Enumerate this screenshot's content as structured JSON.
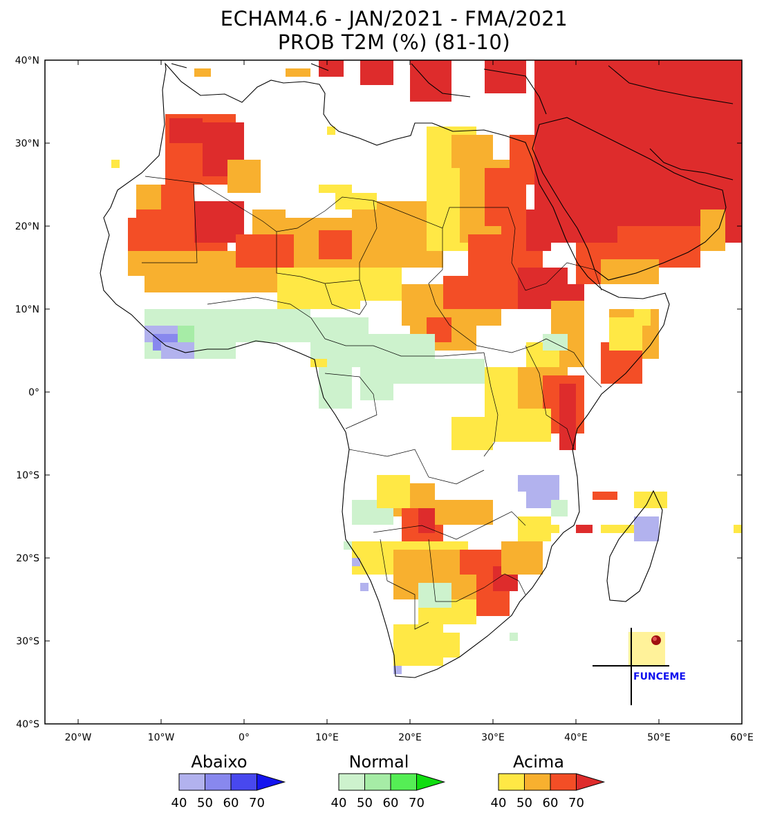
{
  "title": {
    "line1": "ECHAM4.6 - JAN/2021 - FMA/2021",
    "line2": "PROB T2M (%) (81-10)"
  },
  "map": {
    "region": "Africa",
    "lon_range": [
      -24,
      60
    ],
    "lat_range": [
      -40,
      40
    ],
    "lat_ticks": [
      "40°N",
      "30°N",
      "20°N",
      "10°N",
      "0°",
      "10°S",
      "20°S",
      "30°S",
      "40°S"
    ],
    "lon_ticks": [
      "20°W",
      "10°W",
      "0°",
      "10°E",
      "20°E",
      "30°E",
      "40°E",
      "50°E",
      "60°E"
    ]
  },
  "logo": {
    "text": "FUNCEME",
    "color": "#1010ee"
  },
  "colors": {
    "below": [
      "#b2b2ee",
      "#8888ee",
      "#4848ee",
      "#1414ee"
    ],
    "normal": [
      "#cdf2cd",
      "#a6eca6",
      "#55ee55",
      "#10dd10"
    ],
    "above": [
      "#ffe845",
      "#f8b02f",
      "#f34e26",
      "#de2c2c"
    ]
  },
  "legend": [
    {
      "name": "Abaixo",
      "values": [
        "40",
        "50",
        "60",
        "70"
      ]
    },
    {
      "name": "Normal",
      "values": [
        "40",
        "50",
        "60",
        "70"
      ]
    },
    {
      "name": "Acima",
      "values": [
        "40",
        "50",
        "60",
        "70"
      ]
    }
  ]
}
